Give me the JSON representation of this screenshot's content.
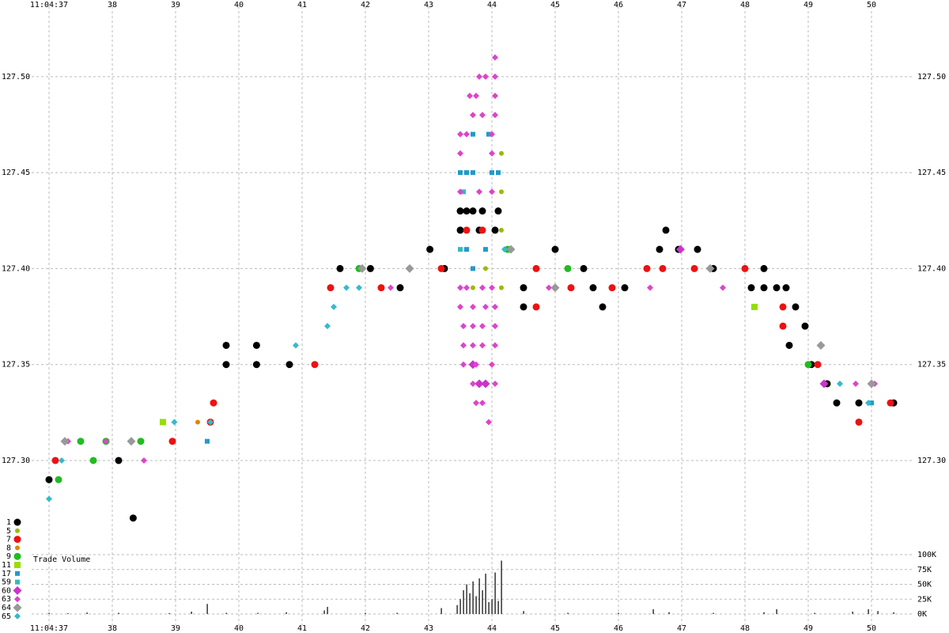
{
  "chart_data": [
    {
      "type": "scatter",
      "xlim": [
        36.725,
        50.6625
      ],
      "xticks": [
        {
          "value": 37,
          "label": "11:04:37"
        },
        38,
        39,
        40,
        41,
        42,
        43,
        44,
        45,
        46,
        47,
        48,
        49,
        50
      ],
      "ylim": [
        127.267,
        127.535
      ],
      "yticks": [
        {
          "value": 127.3,
          "label": "127.30"
        },
        {
          "value": 127.35,
          "label": "127.35"
        },
        {
          "value": 127.4,
          "label": "127.40"
        },
        {
          "value": 127.45,
          "label": "127.45"
        },
        {
          "value": 127.5,
          "label": "127.50"
        }
      ],
      "grid": true,
      "series": [
        {
          "name": "1",
          "color": "#000000",
          "marker": "circle",
          "size": "large",
          "x": [
            37.0,
            38.1,
            38.33,
            39.8,
            39.8,
            40.28,
            40.28,
            40.8,
            41.6,
            42.08,
            42.55,
            43.02,
            43.5,
            43.6,
            43.7,
            43.85,
            44.1,
            43.5,
            43.8,
            44.05,
            43.25,
            44.5,
            44.5,
            45.0,
            45.45,
            45.6,
            45.75,
            46.1,
            46.75,
            46.65,
            46.95,
            47.25,
            47.5,
            48.1,
            48.3,
            48.5,
            48.65,
            48.3,
            48.8,
            48.95,
            48.7,
            49.05,
            49.3,
            49.45,
            49.8,
            50.35
          ],
          "y": [
            127.29,
            127.3,
            127.27,
            127.35,
            127.36,
            127.36,
            127.35,
            127.35,
            127.4,
            127.4,
            127.39,
            127.41,
            127.43,
            127.43,
            127.43,
            127.43,
            127.43,
            127.42,
            127.42,
            127.42,
            127.4,
            127.39,
            127.38,
            127.41,
            127.4,
            127.39,
            127.38,
            127.39,
            127.42,
            127.41,
            127.41,
            127.41,
            127.4,
            127.39,
            127.39,
            127.39,
            127.39,
            127.4,
            127.38,
            127.37,
            127.36,
            127.35,
            127.34,
            127.33,
            127.33,
            127.33
          ]
        },
        {
          "name": "5",
          "color": "#99bb00",
          "marker": "circle",
          "size": "small",
          "x": [
            43.7,
            44.15,
            44.15,
            44.15,
            44.15,
            43.9
          ],
          "y": [
            127.39,
            127.39,
            127.42,
            127.44,
            127.46,
            127.4
          ]
        },
        {
          "name": "7",
          "color": "#ee1111",
          "marker": "circle",
          "size": "large",
          "x": [
            37.1,
            38.95,
            39.55,
            39.6,
            41.45,
            41.2,
            42.25,
            43.2,
            43.85,
            44.7,
            44.7,
            45.25,
            45.9,
            46.45,
            46.7,
            47.2,
            48.0,
            48.6,
            48.6,
            49.15,
            49.8,
            50.3,
            43.6
          ],
          "y": [
            127.3,
            127.31,
            127.32,
            127.33,
            127.39,
            127.35,
            127.39,
            127.4,
            127.42,
            127.4,
            127.38,
            127.39,
            127.39,
            127.4,
            127.4,
            127.4,
            127.4,
            127.38,
            127.37,
            127.35,
            127.32,
            127.33,
            127.42
          ]
        },
        {
          "name": "8",
          "color": "#dd8800",
          "marker": "circle",
          "size": "small",
          "x": [
            39.35
          ],
          "y": [
            127.32
          ]
        },
        {
          "name": "9",
          "color": "#22bb22",
          "marker": "circle",
          "size": "large",
          "x": [
            37.15,
            37.5,
            37.7,
            38.45,
            41.9,
            44.25,
            45.2,
            49.0,
            37.9
          ],
          "y": [
            127.29,
            127.31,
            127.3,
            127.31,
            127.4,
            127.41,
            127.4,
            127.35,
            127.31
          ]
        },
        {
          "name": "11",
          "color": "#99dd00",
          "marker": "square",
          "size": "large",
          "x": [
            38.8,
            48.15
          ],
          "y": [
            127.32,
            127.38
          ]
        },
        {
          "name": "17",
          "color": "#2299cc",
          "marker": "square",
          "size": "small",
          "x": [
            43.5,
            43.6,
            43.7,
            44.0,
            44.1,
            43.7,
            43.95,
            43.6,
            43.9,
            39.5,
            50.0,
            43.7
          ],
          "y": [
            127.45,
            127.45,
            127.45,
            127.45,
            127.45,
            127.47,
            127.47,
            127.41,
            127.41,
            127.31,
            127.33,
            127.4
          ]
        },
        {
          "name": "59",
          "color": "#33bbbb",
          "marker": "square",
          "size": "small",
          "x": [
            43.55,
            43.5
          ],
          "y": [
            127.44,
            127.41
          ]
        },
        {
          "name": "60",
          "color": "#cc33cc",
          "marker": "diamond",
          "size": "large",
          "x": [
            43.9,
            43.8,
            43.7,
            46.98,
            49.25
          ],
          "y": [
            127.34,
            127.34,
            127.35,
            127.41,
            127.34
          ]
        },
        {
          "name": "63",
          "color": "#dd44cc",
          "marker": "diamond",
          "size": "small",
          "x": [
            44.05,
            43.8,
            43.9,
            44.05,
            43.65,
            43.75,
            44.05,
            43.7,
            43.85,
            44.05,
            43.5,
            43.6,
            44.0,
            43.5,
            44.0,
            43.5,
            43.8,
            44.0,
            43.5,
            43.6,
            43.85,
            44.0,
            43.5,
            43.7,
            43.9,
            44.05,
            43.55,
            43.7,
            43.85,
            44.05,
            43.55,
            43.7,
            43.85,
            44.05,
            43.55,
            43.75,
            44.0,
            43.7,
            44.05,
            43.75,
            43.85,
            43.95,
            37.3,
            37.9,
            38.5,
            42.4,
            44.9,
            46.5,
            47.65,
            49.75,
            50.05
          ],
          "y": [
            127.51,
            127.5,
            127.5,
            127.5,
            127.49,
            127.49,
            127.49,
            127.48,
            127.48,
            127.48,
            127.47,
            127.47,
            127.47,
            127.46,
            127.46,
            127.44,
            127.44,
            127.44,
            127.39,
            127.39,
            127.39,
            127.39,
            127.38,
            127.38,
            127.38,
            127.38,
            127.37,
            127.37,
            127.37,
            127.37,
            127.36,
            127.36,
            127.36,
            127.36,
            127.35,
            127.35,
            127.35,
            127.34,
            127.34,
            127.33,
            127.33,
            127.32,
            127.31,
            127.31,
            127.3,
            127.39,
            127.39,
            127.39,
            127.39,
            127.34,
            127.34
          ]
        },
        {
          "name": "64",
          "color": "#999999",
          "marker": "diamond",
          "size": "large",
          "x": [
            37.25,
            38.3,
            41.95,
            42.7,
            44.3,
            45.0,
            47.45,
            49.2,
            50.0
          ],
          "y": [
            127.31,
            127.31,
            127.4,
            127.4,
            127.41,
            127.39,
            127.4,
            127.36,
            127.34
          ]
        },
        {
          "name": "65",
          "color": "#33bbcc",
          "marker": "diamond",
          "size": "small",
          "x": [
            37.0,
            37.2,
            38.98,
            39.55,
            40.9,
            41.4,
            41.5,
            41.7,
            41.9,
            44.2,
            49.5,
            49.95
          ],
          "y": [
            127.28,
            127.3,
            127.32,
            127.32,
            127.36,
            127.37,
            127.38,
            127.39,
            127.39,
            127.41,
            127.34,
            127.33
          ]
        }
      ]
    },
    {
      "type": "bar",
      "title": "Trade Volume",
      "color": "#000000",
      "xlim": [
        36.725,
        50.6625
      ],
      "ylim": [
        0,
        100000
      ],
      "yticks": [
        {
          "value": 0,
          "label": "0K"
        },
        {
          "value": 25000,
          "label": "25K"
        },
        {
          "value": 50000,
          "label": "50K"
        },
        {
          "value": 75000,
          "label": "75K"
        },
        {
          "value": 100000,
          "label": "100K"
        }
      ],
      "grid": true,
      "x": [
        37.0,
        37.3,
        37.6,
        38.1,
        38.9,
        39.25,
        39.5,
        39.8,
        40.3,
        40.75,
        41.35,
        41.4,
        42.0,
        42.5,
        43.2,
        43.45,
        43.5,
        43.55,
        43.6,
        43.65,
        43.7,
        43.75,
        43.8,
        43.85,
        43.9,
        43.95,
        44.0,
        44.05,
        44.1,
        44.15,
        44.5,
        45.2,
        46.0,
        46.55,
        46.8,
        47.5,
        48.3,
        48.5,
        49.1,
        49.7,
        49.95,
        50.1,
        50.35
      ],
      "values": [
        2000,
        1500,
        2500,
        2000,
        1500,
        4000,
        17000,
        2000,
        2000,
        3000,
        6000,
        12000,
        2000,
        2000,
        10000,
        15000,
        25000,
        40000,
        50000,
        35000,
        55000,
        30000,
        60000,
        40000,
        68000,
        20000,
        25000,
        70000,
        22000,
        90000,
        5000,
        2000,
        2000,
        8000,
        3000,
        2000,
        3000,
        8000,
        2000,
        4000,
        8000,
        5000,
        3000
      ]
    }
  ]
}
